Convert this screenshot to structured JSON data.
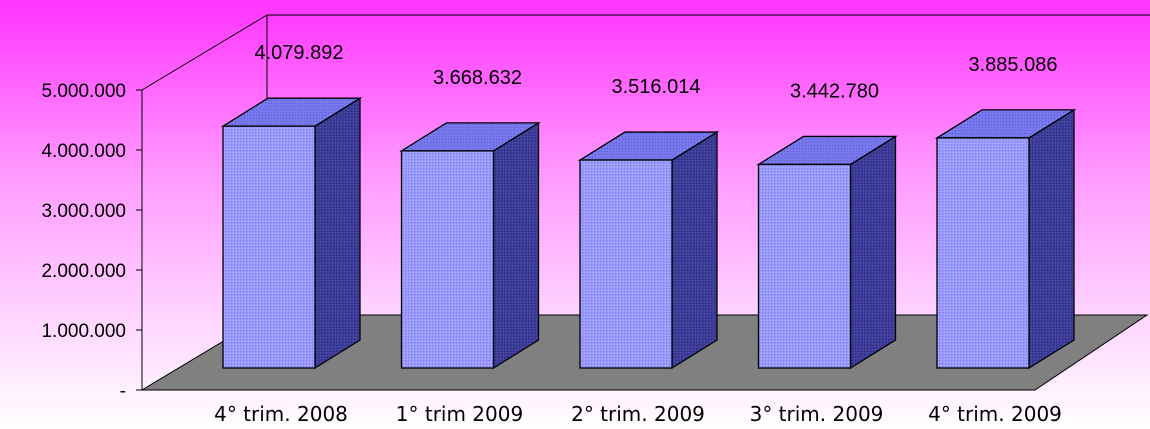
{
  "chart_data": {
    "type": "bar",
    "categories": [
      "4° trim. 2008",
      "1° trim 2009",
      "2° trim. 2009",
      "3° trim. 2009",
      "4° trim. 2009"
    ],
    "values": [
      4079892,
      3668632,
      3516014,
      3442780,
      3885086
    ],
    "data_labels": [
      "4.079.892",
      "3.668.632",
      "3.516.014",
      "3.442.780",
      "3.885.086"
    ],
    "y_ticks": [
      "-",
      "1.000.000",
      "2.000.000",
      "3.000.000",
      "4.000.000",
      "5.000.000"
    ],
    "ylim": [
      0,
      5000000
    ],
    "title": "",
    "xlabel": "",
    "ylabel": "",
    "style": "3d-column",
    "grid": false,
    "legend": "none",
    "colors": {
      "bar_front": "#9999ff",
      "bar_top": "#7777ee",
      "bar_side": "#3d3d99",
      "floor": "#808080",
      "outline": "#000000"
    }
  }
}
